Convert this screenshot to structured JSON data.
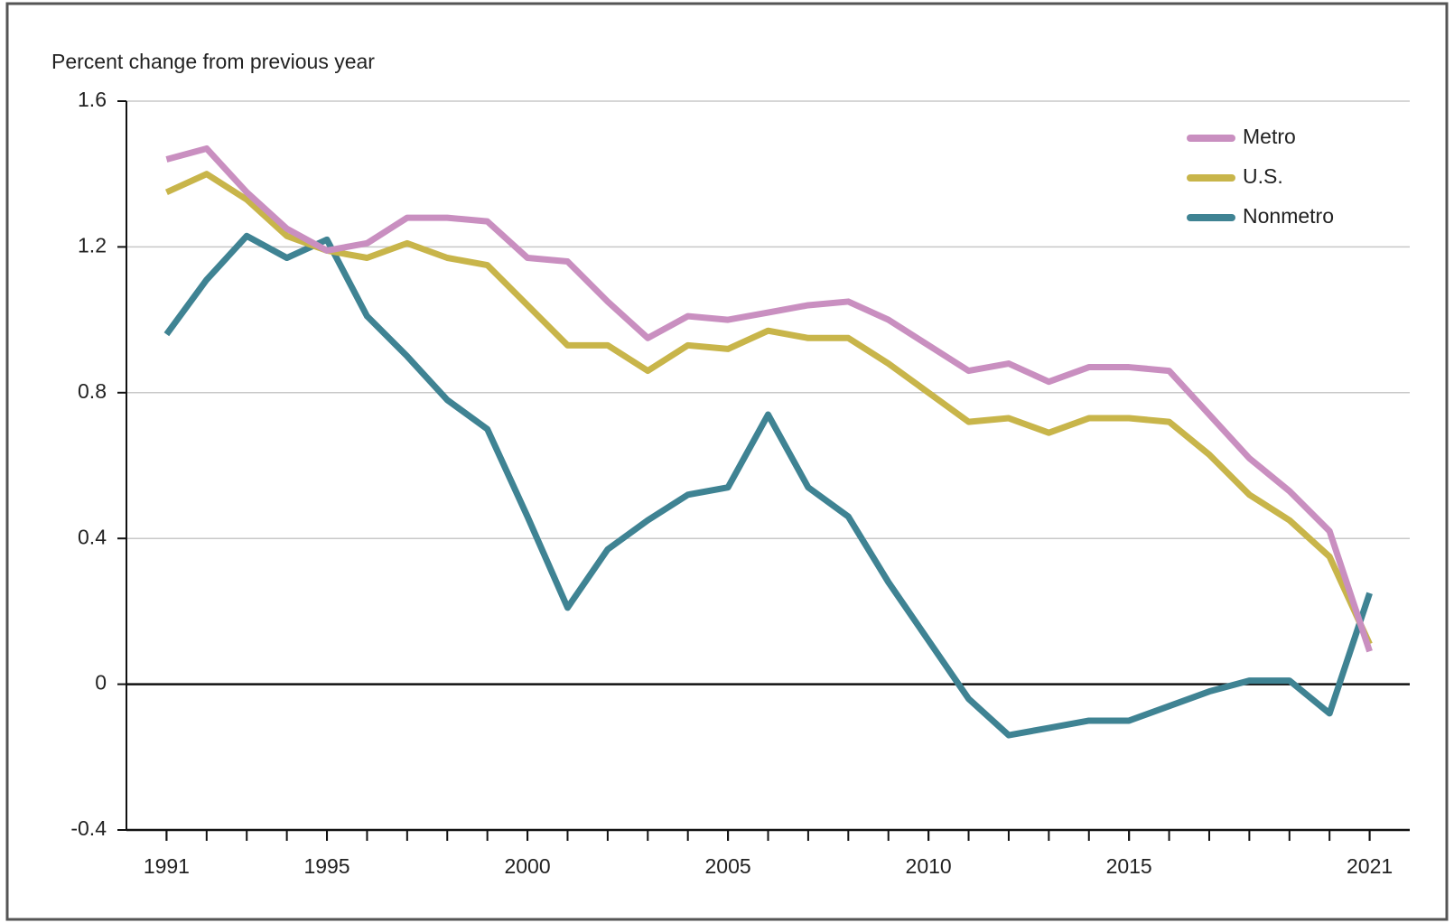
{
  "chart_data": {
    "type": "line",
    "y_axis_label": "Percent change from previous year",
    "x": [
      1991,
      1992,
      1993,
      1994,
      1995,
      1996,
      1997,
      1998,
      1999,
      2000,
      2001,
      2002,
      2003,
      2004,
      2005,
      2006,
      2007,
      2008,
      2009,
      2010,
      2011,
      2012,
      2013,
      2014,
      2015,
      2016,
      2017,
      2018,
      2019,
      2020,
      2021
    ],
    "series": [
      {
        "name": "Metro",
        "color": "#c98fc0",
        "values": [
          1.44,
          1.47,
          1.35,
          1.25,
          1.19,
          1.21,
          1.28,
          1.28,
          1.27,
          1.17,
          1.16,
          1.05,
          0.95,
          1.01,
          1.0,
          1.02,
          1.04,
          1.05,
          1.0,
          0.93,
          0.86,
          0.88,
          0.83,
          0.87,
          0.87,
          0.86,
          0.74,
          0.62,
          0.53,
          0.42,
          0.09
        ]
      },
      {
        "name": "U.S.",
        "color": "#c8b54a",
        "values": [
          1.35,
          1.4,
          1.33,
          1.23,
          1.19,
          1.17,
          1.21,
          1.17,
          1.15,
          1.04,
          0.93,
          0.93,
          0.86,
          0.93,
          0.92,
          0.97,
          0.95,
          0.95,
          0.88,
          0.8,
          0.72,
          0.73,
          0.69,
          0.73,
          0.73,
          0.72,
          0.63,
          0.52,
          0.45,
          0.35,
          0.11
        ]
      },
      {
        "name": "Nonmetro",
        "color": "#3f8393",
        "values": [
          0.96,
          1.11,
          1.23,
          1.17,
          1.22,
          1.01,
          0.9,
          0.78,
          0.7,
          0.46,
          0.21,
          0.37,
          0.45,
          0.52,
          0.54,
          0.74,
          0.54,
          0.46,
          0.28,
          0.12,
          -0.04,
          -0.14,
          -0.12,
          -0.1,
          -0.1,
          -0.06,
          -0.02,
          0.01,
          0.01,
          -0.08,
          0.25
        ]
      }
    ],
    "xlim": [
      1990,
      2022
    ],
    "xticks": [
      1991,
      1995,
      2000,
      2005,
      2010,
      2015,
      2021
    ],
    "ylim": [
      -0.4,
      1.6
    ],
    "yticks": [
      1.6,
      1.2,
      0.8,
      0.4,
      0,
      -0.4
    ],
    "grid": true,
    "legend": "upper right"
  }
}
